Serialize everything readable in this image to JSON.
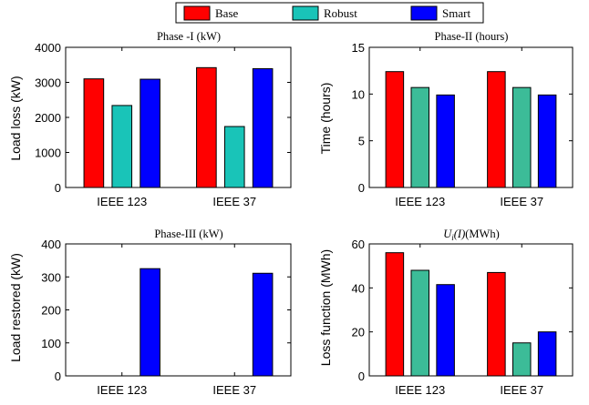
{
  "legend": {
    "entries": [
      {
        "name": "Base",
        "color": "#ff0000"
      },
      {
        "name": "Robust",
        "color": "#19c4b8"
      },
      {
        "name": "Smart",
        "color": "#0000ff"
      }
    ]
  },
  "chart_data": [
    {
      "type": "bar",
      "title": "Phase -I (kW)",
      "ylabel": "Load loss (kW)",
      "xlabel": "",
      "categories": [
        "IEEE 123",
        "IEEE 37"
      ],
      "ylim": [
        0,
        4000
      ],
      "yticks": [
        "0",
        "1000",
        "2000",
        "3000",
        "4000"
      ],
      "series": [
        {
          "name": "Base",
          "color": "#ff0000",
          "values": [
            3100,
            3420
          ]
        },
        {
          "name": "Robust",
          "color": "#19c4b8",
          "values": [
            2340,
            1740
          ]
        },
        {
          "name": "Smart",
          "color": "#0000ff",
          "values": [
            3090,
            3390
          ]
        }
      ]
    },
    {
      "type": "bar",
      "title": "Phase-II (hours)",
      "ylabel": "Time (hours)",
      "xlabel": "",
      "categories": [
        "IEEE 123",
        "IEEE 37"
      ],
      "ylim": [
        0,
        15
      ],
      "yticks": [
        "0",
        "5",
        "10",
        "15"
      ],
      "series": [
        {
          "name": "Base",
          "color": "#ff0000",
          "values": [
            12.4,
            12.4
          ]
        },
        {
          "name": "Robust",
          "color": "#3cbc98",
          "values": [
            10.7,
            10.7
          ]
        },
        {
          "name": "Smart",
          "color": "#0000ff",
          "values": [
            9.9,
            9.9
          ]
        }
      ]
    },
    {
      "type": "bar",
      "title": "Phase-III (kW)",
      "ylabel": "Load restored (kW)",
      "xlabel": "",
      "categories": [
        "IEEE 123",
        "IEEE 37"
      ],
      "ylim": [
        0,
        400
      ],
      "yticks": [
        "0",
        "100",
        "200",
        "300",
        "400"
      ],
      "series": [
        {
          "name": "Base",
          "color": "#ff0000",
          "values": [
            0,
            0
          ]
        },
        {
          "name": "Robust",
          "color": "#3cbc98",
          "values": [
            0,
            0
          ]
        },
        {
          "name": "Smart",
          "color": "#0000ff",
          "values": [
            325,
            311
          ]
        }
      ]
    },
    {
      "type": "bar",
      "title": "U_i(I) (MWh)",
      "ylabel": "Loss function (MWh)",
      "xlabel": "",
      "categories": [
        "IEEE 123",
        "IEEE 37"
      ],
      "ylim": [
        0,
        60
      ],
      "yticks": [
        "0",
        "20",
        "40",
        "60"
      ],
      "series": [
        {
          "name": "Base",
          "color": "#ff0000",
          "values": [
            56,
            47
          ]
        },
        {
          "name": "Robust",
          "color": "#3cbc98",
          "values": [
            48,
            15
          ]
        },
        {
          "name": "Smart",
          "color": "#0000ff",
          "values": [
            41.5,
            20
          ]
        }
      ]
    }
  ]
}
